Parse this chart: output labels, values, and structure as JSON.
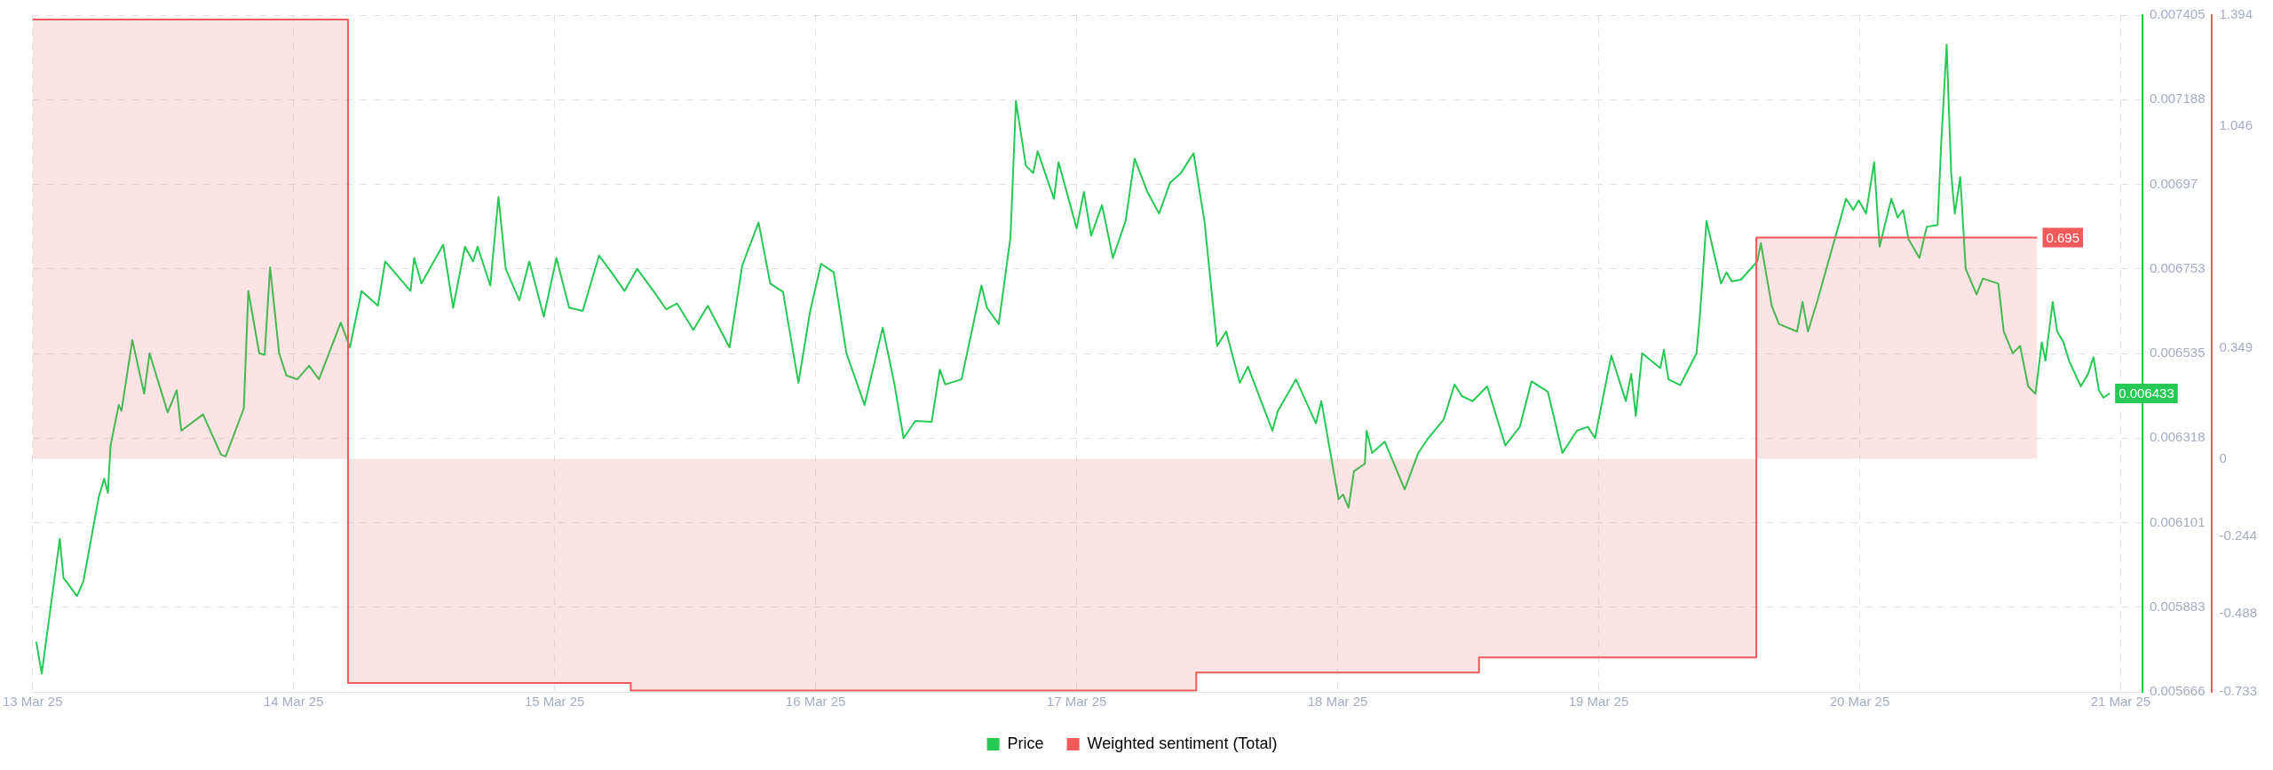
{
  "chart_data": {
    "type": "line",
    "xlim": [
      "--03-13T00:00",
      "--03-21T02:00"
    ],
    "xticks": [
      {
        "value": "--03-13",
        "label": "13 Mar 25"
      },
      {
        "value": "--03-14",
        "label": "14 Mar 25"
      },
      {
        "value": "--03-15",
        "label": "15 Mar 25"
      },
      {
        "value": "--03-16",
        "label": "16 Mar 25"
      },
      {
        "value": "--03-17",
        "label": "17 Mar 25"
      },
      {
        "value": "--03-18",
        "label": "18 Mar 25"
      },
      {
        "value": "--03-19",
        "label": "19 Mar 25"
      },
      {
        "value": "--03-20",
        "label": "20 Mar 25"
      },
      {
        "value": "--03-21",
        "label": "21 Mar 25"
      }
    ],
    "ylim": [
      0.005666,
      0.007405
    ],
    "yticks": [
      0.005666,
      0.005883,
      0.006101,
      0.006318,
      0.006535,
      0.006753,
      0.00697,
      0.007188,
      0.007405
    ],
    "y2lim": [
      -0.733,
      1.394
    ],
    "y2ticks": [
      -0.733,
      -0.488,
      -0.244,
      0,
      0.349,
      1.046,
      1.394
    ],
    "grid": true,
    "legend": "bottom",
    "series": [
      {
        "name": "Price",
        "type": "line",
        "color": "#26c953",
        "x": [
          "--03-13T00:20",
          "--03-13T00:50",
          "--03-13T02:30",
          "--03-13T02:50",
          "--03-13T04:05",
          "--03-13T04:40",
          "--03-13T06:05",
          "--03-13T06:35",
          "--03-13T06:55",
          "--03-13T07:10",
          "--03-13T07:55",
          "--03-13T08:10",
          "--03-13T09:10",
          "--03-13T10:15",
          "--03-13T10:45",
          "--03-13T12:25",
          "--03-13T13:15",
          "--03-13T13:40",
          "--03-13T15:40",
          "--03-13T17:20",
          "--03-13T17:45",
          "--03-13T19:25",
          "--03-13T19:50",
          "--03-13T20:50",
          "--03-13T21:20",
          "--03-13T21:50",
          "--03-13T22:40",
          "--03-13T23:20",
          "--03-14T00:20",
          "--03-14T01:25",
          "--03-14T02:20",
          "--03-14T04:20",
          "--03-14T05:10",
          "--03-14T06:15",
          "--03-14T07:45",
          "--03-14T08:25",
          "--03-14T10:45",
          "--03-14T11:05",
          "--03-14T11:45",
          "--03-14T13:45",
          "--03-14T14:40",
          "--03-14T15:45",
          "--03-14T16:30",
          "--03-14T16:55",
          "--03-14T18:05",
          "--03-14T18:50",
          "--03-14T19:30",
          "--03-14T20:45",
          "--03-14T21:40",
          "--03-14T23:00",
          "--03-15T00:10",
          "--03-15T01:20",
          "--03-15T02:35",
          "--03-15T04:05",
          "--03-15T05:20",
          "--03-15T06:25",
          "--03-15T07:35",
          "--03-15T09:05",
          "--03-15T10:15",
          "--03-15T11:15",
          "--03-15T12:45",
          "--03-15T14:05",
          "--03-15T16:05",
          "--03-15T17:15",
          "--03-15T18:45",
          "--03-15T19:50",
          "--03-15T21:00",
          "--03-15T22:25",
          "--03-15T23:30",
          "--03-16T00:30",
          "--03-16T01:40",
          "--03-16T02:50",
          "--03-16T04:30",
          "--03-16T06:10",
          "--03-16T07:15",
          "--03-16T08:05",
          "--03-16T09:10",
          "--03-16T10:40",
          "--03-16T11:25",
          "--03-16T11:55",
          "--03-16T13:25",
          "--03-16T15:15",
          "--03-16T15:45",
          "--03-16T16:50",
          "--03-16T17:55",
          "--03-16T18:25",
          "--03-16T19:20",
          "--03-16T20:00",
          "--03-16T20:25",
          "--03-16T21:55",
          "--03-16T22:20",
          "--03-17T00:00",
          "--03-17T00:40",
          "--03-17T01:20",
          "--03-17T02:20",
          "--03-17T03:20",
          "--03-17T04:30",
          "--03-17T05:20",
          "--03-17T06:30",
          "--03-17T07:35",
          "--03-17T08:35",
          "--03-17T09:35",
          "--03-17T10:45",
          "--03-17T11:45",
          "--03-17T12:55",
          "--03-17T13:45",
          "--03-17T15:00",
          "--03-17T15:45",
          "--03-17T18:00",
          "--03-17T18:30",
          "--03-17T20:10",
          "--03-17T22:00",
          "--03-17T22:30",
          "--03-18T00:05",
          "--03-18T00:30",
          "--03-18T01:00",
          "--03-18T01:30",
          "--03-18T02:30",
          "--03-18T02:40",
          "--03-18T03:10",
          "--03-18T04:20",
          "--03-18T06:10",
          "--03-18T07:25",
          "--03-18T08:20",
          "--03-18T09:45",
          "--03-18T10:45",
          "--03-18T11:25",
          "--03-18T12:25",
          "--03-18T13:45",
          "--03-18T15:25",
          "--03-18T16:45",
          "--03-18T17:50",
          "--03-18T19:20",
          "--03-18T20:40",
          "--03-18T22:00",
          "--03-18T23:00",
          "--03-18T23:40",
          "--03-19T01:10",
          "--03-19T02:30",
          "--03-19T03:00",
          "--03-19T03:25",
          "--03-19T04:00",
          "--03-19T05:40",
          "--03-19T06:00",
          "--03-19T06:25",
          "--03-19T07:30",
          "--03-19T09:00",
          "--03-19T09:20",
          "--03-19T09:55",
          "--03-19T11:15",
          "--03-19T11:45",
          "--03-19T12:15",
          "--03-19T13:05",
          "--03-19T14:35",
          "--03-19T14:55",
          "--03-19T15:55",
          "--03-19T16:35",
          "--03-19T18:15",
          "--03-19T18:45",
          "--03-19T19:15",
          "--03-19T20:05",
          "--03-19T21:25",
          "--03-19T22:05",
          "--03-19T22:45",
          "--03-19T23:25",
          "--03-19T23:55",
          "--03-20T00:35",
          "--03-20T01:20",
          "--03-20T01:50",
          "--03-20T02:55",
          "--03-20T03:30",
          "--03-20T04:00",
          "--03-20T04:30",
          "--03-20T05:30",
          "--03-20T06:10",
          "--03-20T07:10",
          "--03-20T07:30",
          "--03-20T08:00",
          "--03-20T08:25",
          "--03-20T08:45",
          "--03-20T09:15",
          "--03-20T09:45",
          "--03-20T10:45",
          "--03-20T11:20",
          "--03-20T12:45",
          "--03-20T13:15",
          "--03-20T14:05",
          "--03-20T14:45",
          "--03-20T15:30",
          "--03-20T16:10",
          "--03-20T16:45",
          "--03-20T17:05",
          "--03-20T17:45",
          "--03-20T18:10",
          "--03-20T18:45",
          "--03-20T19:15",
          "--03-20T20:20",
          "--03-20T21:00",
          "--03-20T21:30",
          "--03-20T22:00",
          "--03-20T22:25",
          "--03-20T23:00"
        ],
        "values": [
          0.005795,
          0.005713,
          0.006059,
          0.005959,
          0.005912,
          0.00595,
          0.006167,
          0.006214,
          0.006177,
          0.006299,
          0.006403,
          0.006388,
          0.00657,
          0.006432,
          0.006536,
          0.006384,
          0.006441,
          0.006337,
          0.006379,
          0.006275,
          0.006271,
          0.006394,
          0.006696,
          0.006536,
          0.006532,
          0.006757,
          0.006536,
          0.006479,
          0.006469,
          0.006504,
          0.006469,
          0.006615,
          0.006551,
          0.006696,
          0.006658,
          0.006772,
          0.006696,
          0.006781,
          0.006715,
          0.006815,
          0.006653,
          0.00681,
          0.006772,
          0.00681,
          0.00671,
          0.006938,
          0.006753,
          0.006672,
          0.006772,
          0.00663,
          0.006781,
          0.006653,
          0.006645,
          0.006787,
          0.00674,
          0.006696,
          0.006753,
          0.006696,
          0.006649,
          0.006664,
          0.006596,
          0.006658,
          0.006551,
          0.006762,
          0.006872,
          0.006715,
          0.006694,
          0.00646,
          0.006645,
          0.006766,
          0.006744,
          0.006536,
          0.006403,
          0.006602,
          0.006456,
          0.006318,
          0.006362,
          0.00636,
          0.006494,
          0.006456,
          0.006469,
          0.00671,
          0.006653,
          0.006611,
          0.006834,
          0.007184,
          0.007018,
          0.006999,
          0.007055,
          0.006933,
          0.007027,
          0.006857,
          0.006951,
          0.006838,
          0.006917,
          0.006781,
          0.006876,
          0.007036,
          0.006951,
          0.006895,
          0.006974,
          0.006999,
          0.00705,
          0.006876,
          0.006555,
          0.006592,
          0.00646,
          0.006502,
          0.006337,
          0.006388,
          0.006469,
          0.006356,
          0.006413,
          0.006161,
          0.006173,
          0.006139,
          0.006233,
          0.006252,
          0.006337,
          0.00628,
          0.006309,
          0.006186,
          0.00628,
          0.006318,
          0.006366,
          0.006456,
          0.006426,
          0.006413,
          0.006451,
          0.006299,
          0.006347,
          0.006464,
          0.006437,
          0.00628,
          0.006337,
          0.006347,
          0.006318,
          0.00653,
          0.006413,
          0.006483,
          0.006375,
          0.006536,
          0.006498,
          0.006545,
          0.006469,
          0.006454,
          0.006536,
          0.00664,
          0.006876,
          0.006715,
          0.006744,
          0.006721,
          0.006725,
          0.006772,
          0.006819,
          0.006658,
          0.006611,
          0.006592,
          0.006668,
          0.006592,
          0.006668,
          0.0068,
          0.006866,
          0.006933,
          0.006904,
          0.006929,
          0.006895,
          0.007027,
          0.00681,
          0.006933,
          0.006885,
          0.006904,
          0.006829,
          0.006781,
          0.006861,
          0.006866,
          0.007074,
          0.007329,
          0.006999,
          0.006895,
          0.006989,
          0.006753,
          0.006687,
          0.006728,
          0.006715,
          0.006592,
          0.006536,
          0.006555,
          0.006451,
          0.006432,
          0.006564,
          0.006517,
          0.006668,
          0.006592,
          0.006564,
          0.006517,
          0.006451,
          0.006483,
          0.006526,
          0.006441,
          0.006422,
          0.006433
        ],
        "value_labels": [
          null,
          null,
          null,
          null,
          null,
          null,
          null,
          null,
          null,
          null,
          null,
          null,
          null,
          null,
          null,
          null,
          null,
          null,
          null,
          null,
          null,
          null,
          null,
          null,
          null,
          null,
          null,
          null,
          null,
          null,
          null,
          null,
          null,
          null,
          null,
          null,
          null,
          null,
          null,
          null,
          null,
          null,
          null,
          null,
          null,
          null,
          null,
          null,
          null,
          null,
          null,
          null,
          null,
          null,
          null,
          null,
          null,
          null,
          null,
          null,
          null,
          null,
          null,
          null,
          null,
          null,
          null,
          null,
          null,
          null,
          null,
          null,
          null,
          null,
          null,
          null,
          null,
          null,
          null,
          null,
          null,
          null,
          null,
          null,
          null,
          null,
          null,
          null,
          null,
          null,
          null,
          null,
          null,
          null,
          null,
          null,
          null,
          null,
          null,
          null,
          null,
          null,
          null,
          null,
          null,
          null,
          null,
          null,
          null,
          null,
          null,
          null,
          null,
          null,
          null,
          null,
          null,
          null,
          null,
          null,
          null,
          null,
          null,
          null,
          null,
          null,
          null,
          null,
          null,
          null,
          null,
          null,
          null,
          null,
          null,
          null,
          null,
          null,
          null,
          null,
          null,
          null,
          null,
          null,
          null,
          null,
          null,
          null,
          null,
          null,
          null,
          null,
          null,
          null,
          null,
          null,
          null,
          null,
          null,
          null,
          null,
          null,
          null,
          null,
          null,
          null,
          null,
          null,
          null,
          null,
          null,
          null,
          null,
          null,
          null,
          null,
          null,
          null,
          null,
          null,
          null,
          null,
          null,
          null,
          null,
          null,
          null,
          null,
          null,
          null,
          null,
          null,
          null,
          null,
          null,
          null,
          null,
          null,
          null,
          null,
          null,
          "0.006433"
        ]
      },
      {
        "name": "Weighted sentiment (Total)",
        "type": "step",
        "axis": "y2",
        "color": "#f05a5a",
        "x": [
          "--03-13T00:00",
          "--03-14T05:00",
          "--03-15T07:00",
          "--03-17T11:00",
          "--03-18T13:00",
          "--03-19T14:30",
          "--03-20T16:20"
        ],
        "values": [
          1.38,
          -0.705,
          -0.729,
          -0.672,
          -0.625,
          0.695,
          0.695
        ],
        "value_labels": [
          null,
          null,
          null,
          null,
          null,
          null,
          "0.695"
        ]
      }
    ]
  }
}
